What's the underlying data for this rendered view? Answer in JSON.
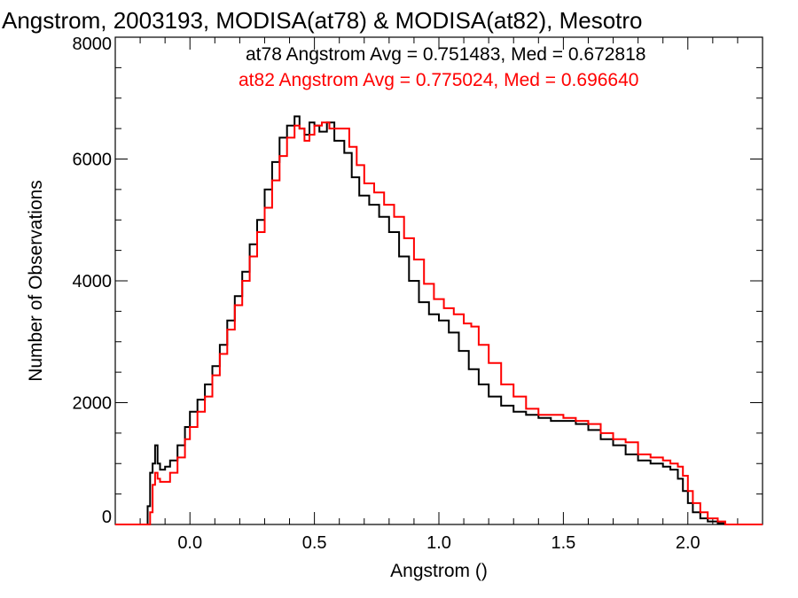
{
  "chart_data": {
    "type": "line",
    "step": true,
    "title": "Angstrom, 2003193, MODISA(at78) & MODISA(at82), Mesotro",
    "xlabel": "Angstrom ()",
    "ylabel": "Number of Observations",
    "xlim": [
      -0.3,
      2.3
    ],
    "ylim": [
      0,
      8000
    ],
    "x_ticks": [
      0.0,
      0.5,
      1.0,
      1.5,
      2.0
    ],
    "x_tick_labels": [
      "0.0",
      "0.5",
      "1.0",
      "1.5",
      "2.0"
    ],
    "y_ticks": [
      0,
      2000,
      4000,
      6000,
      8000
    ],
    "y_tick_labels": [
      "0",
      "2000",
      "4000",
      "6000",
      "8000"
    ],
    "annotations": [
      {
        "text": "at78 Angstrom Avg = 0.751483, Med = 0.672818",
        "color": "#000000"
      },
      {
        "text": "at82 Angstrom Avg = 0.775024, Med = 0.696640",
        "color": "#ff0000"
      }
    ],
    "series": [
      {
        "color": "#000000",
        "x": [
          -0.3,
          -0.18,
          -0.17,
          -0.16,
          -0.15,
          -0.14,
          -0.13,
          -0.12,
          -0.1,
          -0.08,
          -0.05,
          -0.02,
          0.0,
          0.03,
          0.06,
          0.09,
          0.12,
          0.15,
          0.18,
          0.21,
          0.24,
          0.27,
          0.3,
          0.33,
          0.36,
          0.39,
          0.42,
          0.44,
          0.46,
          0.48,
          0.5,
          0.52,
          0.55,
          0.58,
          0.62,
          0.65,
          0.68,
          0.72,
          0.76,
          0.8,
          0.84,
          0.88,
          0.92,
          0.96,
          1.0,
          1.04,
          1.08,
          1.12,
          1.16,
          1.2,
          1.25,
          1.3,
          1.35,
          1.4,
          1.45,
          1.5,
          1.55,
          1.6,
          1.65,
          1.7,
          1.75,
          1.8,
          1.85,
          1.9,
          1.93,
          1.96,
          1.98,
          2.0,
          2.02,
          2.05,
          2.08,
          2.12,
          2.15,
          2.3
        ],
        "y": [
          0,
          0,
          300,
          850,
          1000,
          1300,
          1000,
          900,
          950,
          1050,
          1300,
          1600,
          1850,
          2050,
          2300,
          2600,
          2950,
          3350,
          3750,
          4150,
          4600,
          5000,
          5500,
          5950,
          6350,
          6550,
          6700,
          6500,
          6400,
          6600,
          6550,
          6450,
          6600,
          6300,
          6100,
          5700,
          5400,
          5250,
          5050,
          4800,
          4400,
          4000,
          3650,
          3450,
          3350,
          3150,
          2850,
          2550,
          2300,
          2100,
          1950,
          1850,
          1800,
          1750,
          1700,
          1700,
          1650,
          1550,
          1400,
          1300,
          1150,
          1050,
          1000,
          950,
          900,
          750,
          550,
          350,
          200,
          100,
          50,
          20,
          0,
          0
        ]
      },
      {
        "color": "#ff0000",
        "x": [
          -0.3,
          -0.17,
          -0.16,
          -0.15,
          -0.14,
          -0.13,
          -0.12,
          -0.1,
          -0.08,
          -0.05,
          -0.02,
          0.0,
          0.03,
          0.06,
          0.09,
          0.12,
          0.15,
          0.18,
          0.21,
          0.24,
          0.27,
          0.3,
          0.33,
          0.36,
          0.39,
          0.42,
          0.44,
          0.46,
          0.48,
          0.5,
          0.53,
          0.56,
          0.6,
          0.64,
          0.67,
          0.7,
          0.74,
          0.78,
          0.82,
          0.86,
          0.9,
          0.94,
          0.98,
          1.02,
          1.06,
          1.1,
          1.13,
          1.16,
          1.2,
          1.25,
          1.3,
          1.35,
          1.4,
          1.45,
          1.5,
          1.55,
          1.6,
          1.65,
          1.7,
          1.75,
          1.8,
          1.85,
          1.9,
          1.93,
          1.96,
          1.98,
          2.0,
          2.02,
          2.05,
          2.08,
          2.12,
          2.15,
          2.3
        ],
        "y": [
          0,
          0,
          200,
          650,
          850,
          750,
          700,
          700,
          850,
          1100,
          1400,
          1600,
          1850,
          2100,
          2450,
          2800,
          3200,
          3600,
          4000,
          4400,
          4800,
          5200,
          5650,
          6050,
          6350,
          6550,
          6500,
          6300,
          6400,
          6550,
          6600,
          6500,
          6500,
          6200,
          5900,
          5600,
          5450,
          5250,
          5050,
          4700,
          4350,
          3950,
          3700,
          3550,
          3450,
          3300,
          3250,
          2950,
          2650,
          2300,
          2100,
          1900,
          1800,
          1800,
          1750,
          1700,
          1650,
          1500,
          1400,
          1350,
          1150,
          1100,
          1050,
          1000,
          950,
          800,
          550,
          350,
          200,
          100,
          50,
          0,
          0
        ]
      }
    ]
  }
}
